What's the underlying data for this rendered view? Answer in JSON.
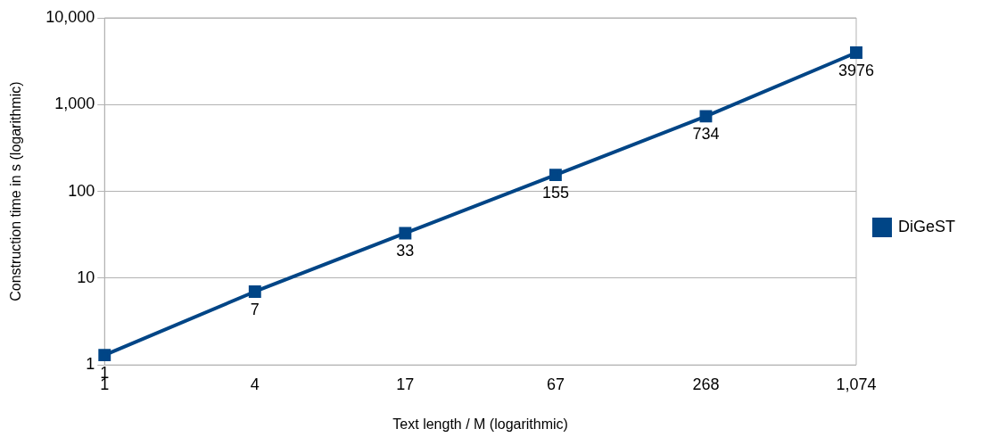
{
  "chart_data": {
    "type": "line",
    "xlabel": "Text length / M (logarithmic)",
    "ylabel": "Construction time in s (logarithmic)",
    "categories": [
      "1",
      "4",
      "17",
      "67",
      "268",
      "1,074"
    ],
    "series": [
      {
        "name": "DiGeST",
        "color": "#004586",
        "values": [
          1.3,
          7,
          33,
          155,
          734,
          3976
        ],
        "value_labels": [
          "1",
          "7",
          "33",
          "155",
          "734",
          "3976"
        ]
      }
    ],
    "log": "y",
    "ylim": [
      1,
      10000
    ],
    "yticks": [
      1,
      10,
      100,
      {
        "value": 1000,
        "label": "1,000"
      },
      {
        "value": 10000,
        "label": "10,000"
      }
    ],
    "grid": "y",
    "legend": "right",
    "marker": "square",
    "line_style": "solid"
  }
}
